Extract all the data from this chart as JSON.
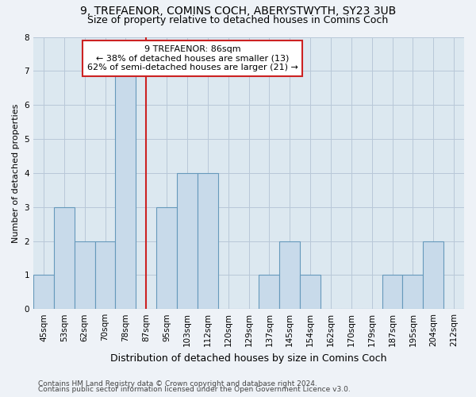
{
  "title1": "9, TREFAENOR, COMINS COCH, ABERYSTWYTH, SY23 3UB",
  "title2": "Size of property relative to detached houses in Comins Coch",
  "xlabel": "Distribution of detached houses by size in Comins Coch",
  "ylabel": "Number of detached properties",
  "categories": [
    "45sqm",
    "53sqm",
    "62sqm",
    "70sqm",
    "78sqm",
    "87sqm",
    "95sqm",
    "103sqm",
    "112sqm",
    "120sqm",
    "129sqm",
    "137sqm",
    "145sqm",
    "154sqm",
    "162sqm",
    "170sqm",
    "179sqm",
    "187sqm",
    "195sqm",
    "204sqm",
    "212sqm"
  ],
  "values": [
    1,
    3,
    2,
    2,
    7,
    0,
    3,
    4,
    4,
    0,
    0,
    1,
    2,
    1,
    0,
    0,
    0,
    1,
    1,
    2,
    0
  ],
  "red_line_index": 5,
  "bar_color": "#c8daea",
  "bar_edge_color": "#6699bb",
  "red_line_color": "#cc2222",
  "ylim": [
    0,
    8
  ],
  "yticks": [
    0,
    1,
    2,
    3,
    4,
    5,
    6,
    7,
    8
  ],
  "annotation_text": "9 TREFAENOR: 86sqm\n← 38% of detached houses are smaller (13)\n62% of semi-detached houses are larger (21) →",
  "annotation_box_facecolor": "#ffffff",
  "annotation_box_edgecolor": "#cc2222",
  "footer1": "Contains HM Land Registry data © Crown copyright and database right 2024.",
  "footer2": "Contains public sector information licensed under the Open Government Licence v3.0.",
  "fig_facecolor": "#eef2f7",
  "plot_facecolor": "#dce8f0",
  "grid_color": "#b8c8d8",
  "title1_fontsize": 10,
  "title2_fontsize": 9,
  "xlabel_fontsize": 9,
  "ylabel_fontsize": 8,
  "tick_fontsize": 7.5,
  "annotation_fontsize": 8,
  "footer_fontsize": 6.5
}
